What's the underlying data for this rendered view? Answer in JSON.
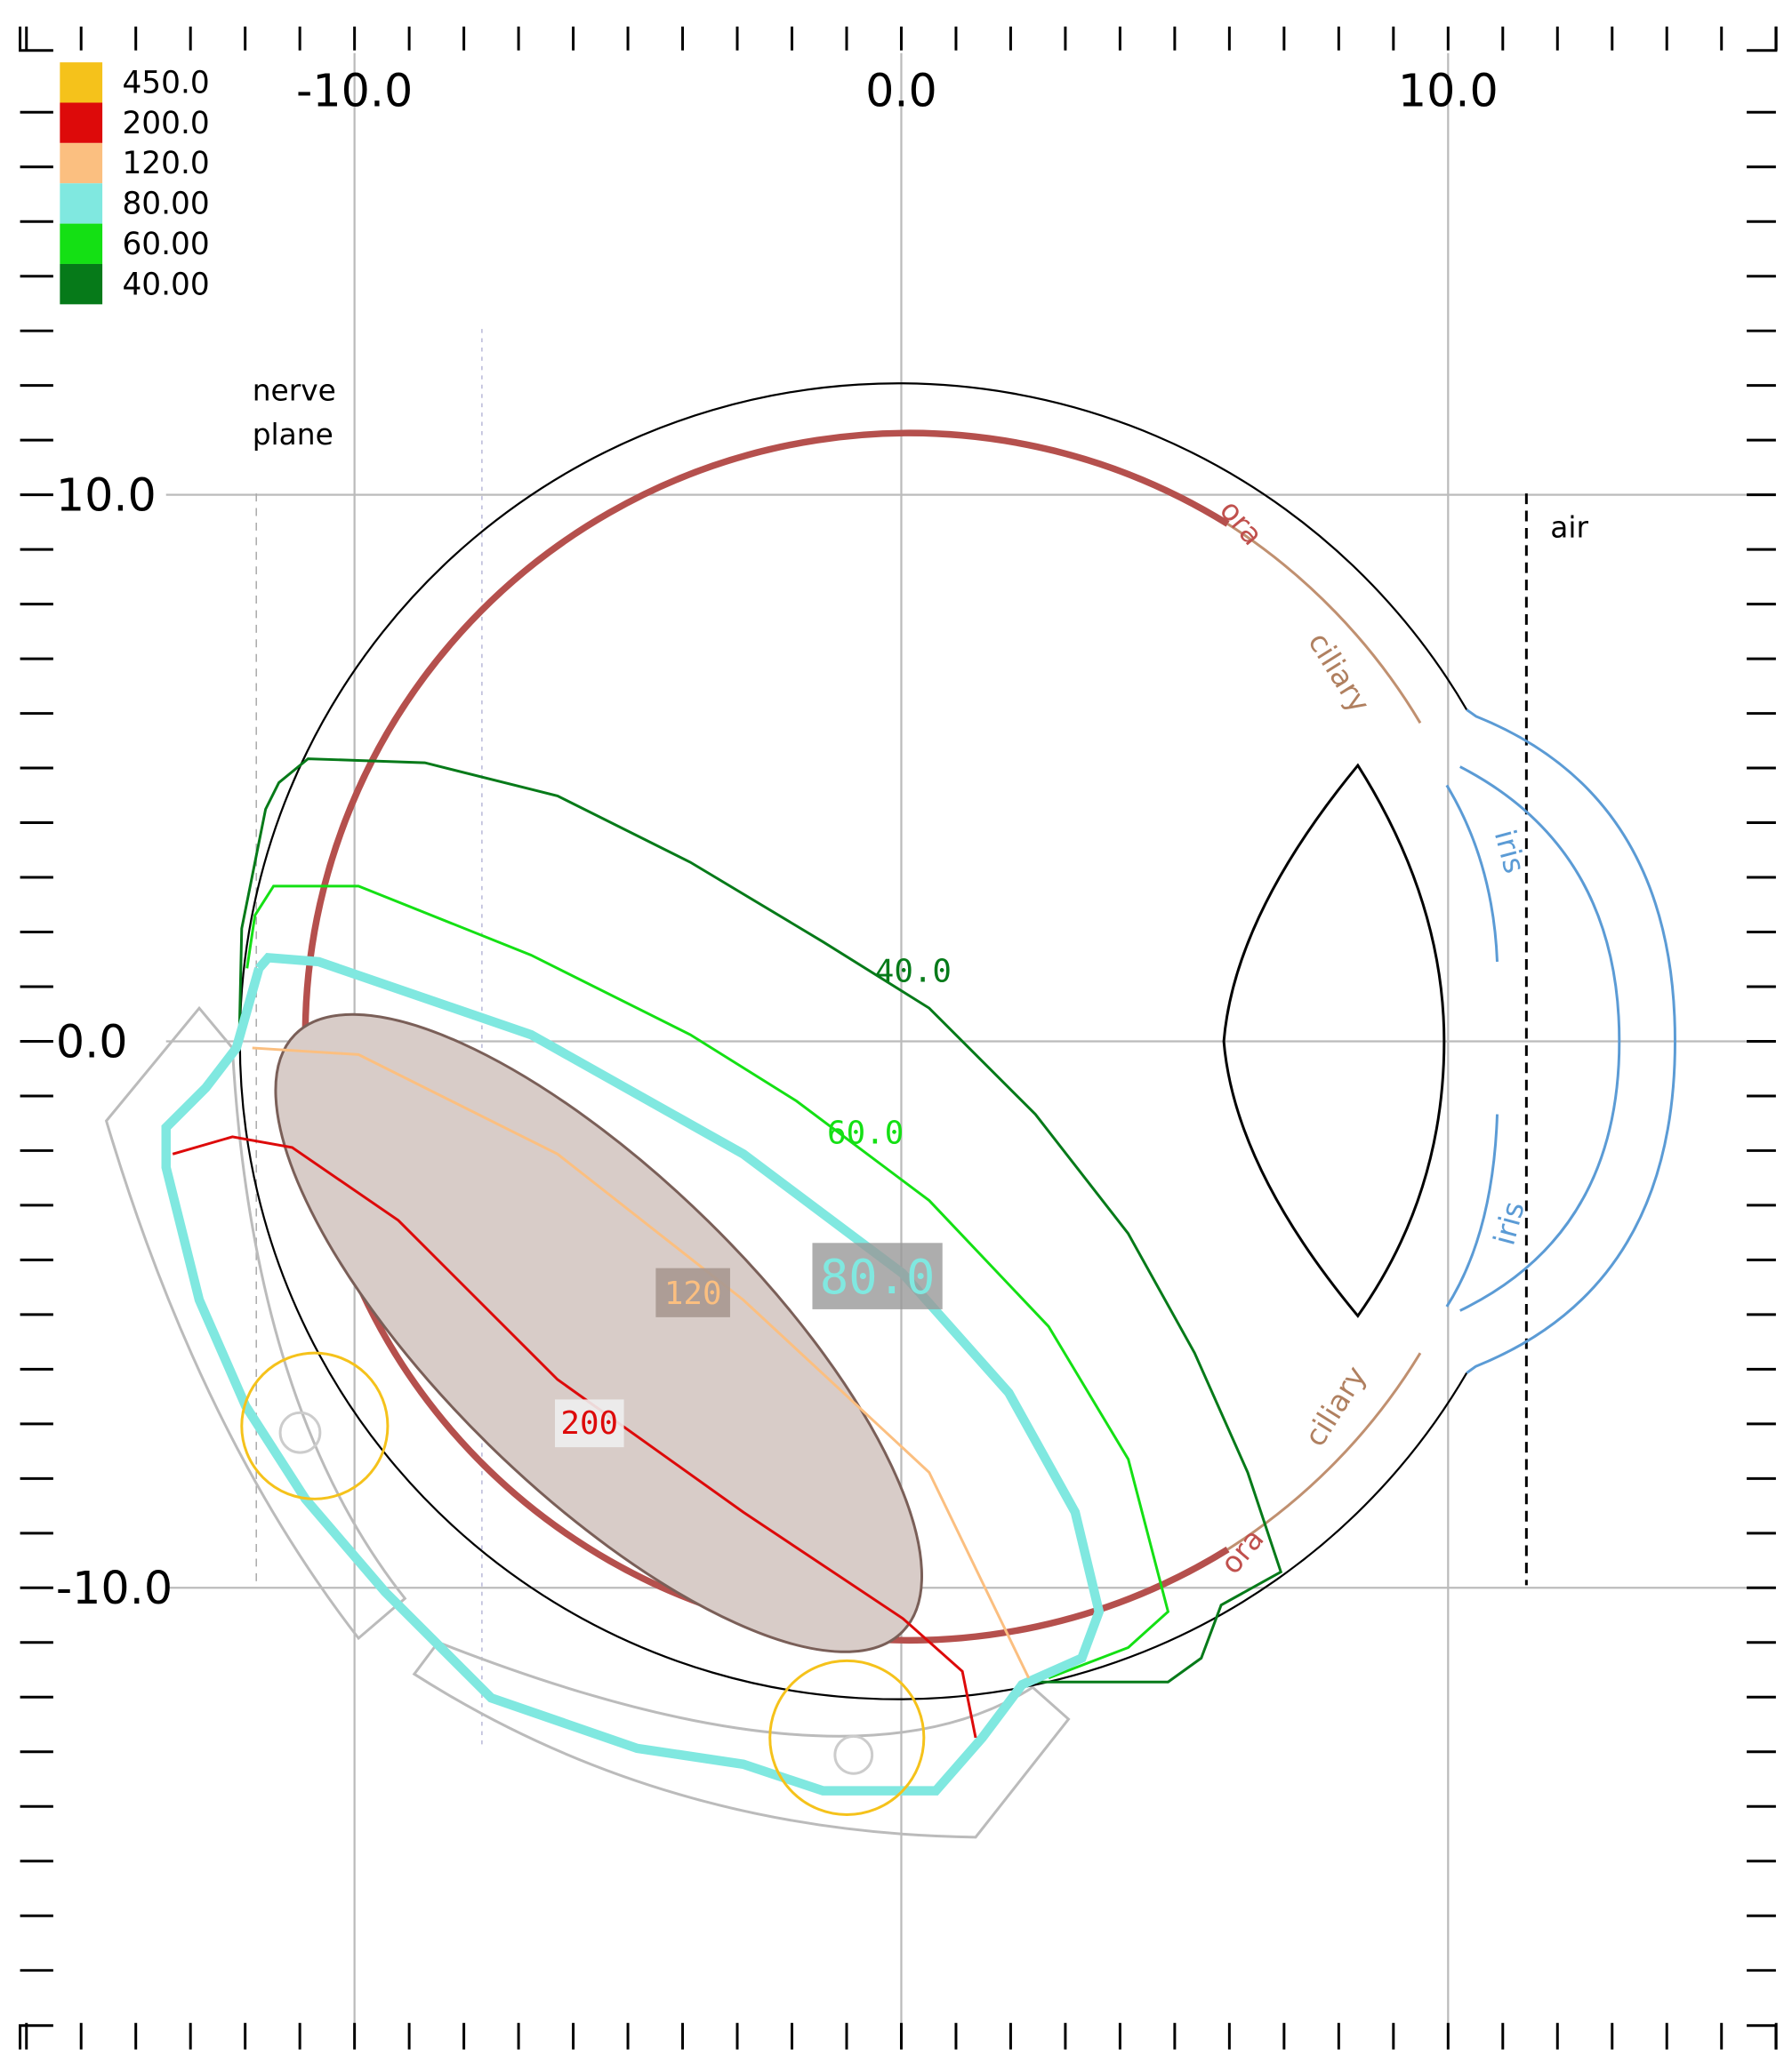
{
  "legend": {
    "entries": [
      {
        "label": "450.0",
        "color": "#f5c21b"
      },
      {
        "label": "200.0",
        "color": "#dd0a0a"
      },
      {
        "label": "120.0",
        "color": "#fbbf80"
      },
      {
        "label": "80.00",
        "color": "#80e8e0"
      },
      {
        "label": "60.00",
        "color": "#14e014"
      },
      {
        "label": "40.00",
        "color": "#067a19"
      }
    ]
  },
  "axes": {
    "xticks": [
      {
        "value": -10,
        "label": "-10.0"
      },
      {
        "value": 0,
        "label": "0.0"
      },
      {
        "value": 10,
        "label": "10.0"
      }
    ],
    "yticks": [
      {
        "value": 10,
        "label": "10.0"
      },
      {
        "value": 0,
        "label": "0.0"
      },
      {
        "value": -10,
        "label": "-10.0"
      }
    ]
  },
  "contours": {
    "labels": [
      {
        "value": 40,
        "label": "40.0"
      },
      {
        "value": 60,
        "label": "60.0"
      },
      {
        "value": 80,
        "label": "80.0"
      },
      120,
      200
    ]
  },
  "annotations": {
    "nerve_plane": [
      "nerve",
      "plane"
    ],
    "air": "air",
    "ora": [
      "ora",
      "ora"
    ],
    "ciliary": [
      "ciliary",
      "ciliary"
    ],
    "iris": [
      "iris",
      "iris"
    ]
  }
}
